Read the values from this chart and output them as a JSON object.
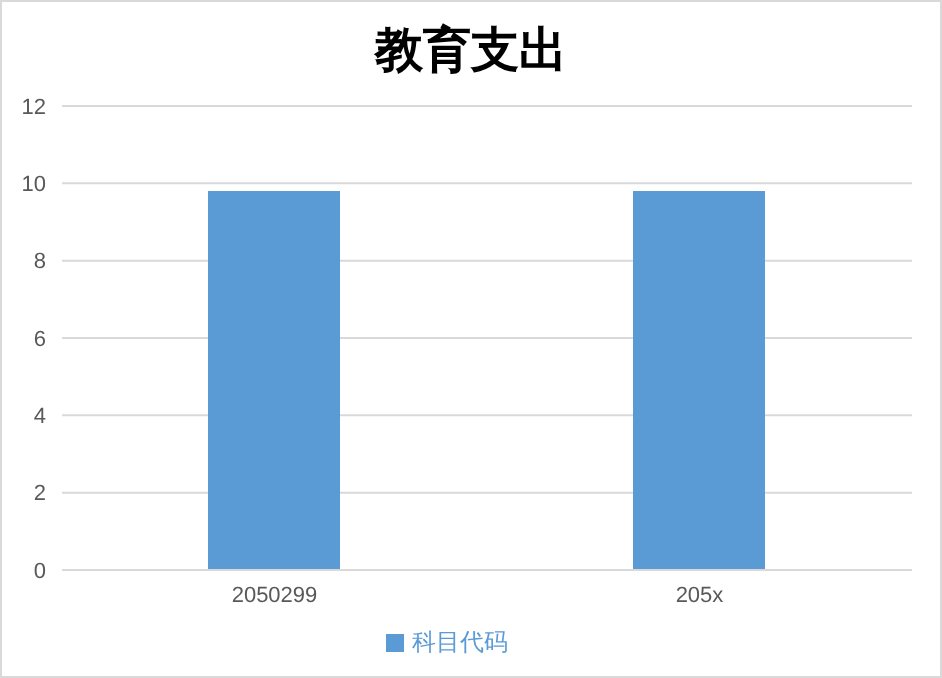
{
  "chart_data": {
    "type": "bar",
    "title": "教育支出",
    "categories": [
      "2050299",
      "205x"
    ],
    "series": [
      {
        "name": "科目代码",
        "color": "#5b9bd5",
        "values": [
          9.8,
          9.8
        ]
      }
    ],
    "ylim": [
      0,
      12
    ],
    "yticks": [
      0,
      2,
      4,
      6,
      8,
      10,
      12
    ],
    "grid": "y",
    "legend": "bottom"
  }
}
